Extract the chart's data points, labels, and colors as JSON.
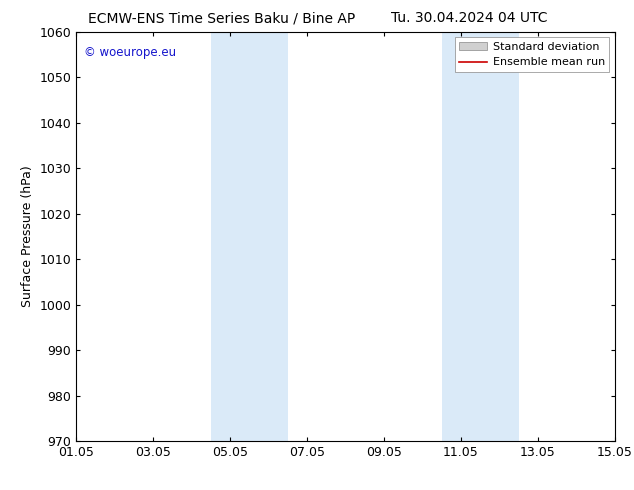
{
  "title_left": "ECMW-ENS Time Series Baku / Bine AP",
  "title_right": "Tu. 30.04.2024 04 UTC",
  "ylabel": "Surface Pressure (hPa)",
  "ylim": [
    970,
    1060
  ],
  "yticks": [
    970,
    980,
    990,
    1000,
    1010,
    1020,
    1030,
    1040,
    1050,
    1060
  ],
  "xlim": [
    0,
    14
  ],
  "xtick_labels": [
    "01.05",
    "03.05",
    "05.05",
    "07.05",
    "09.05",
    "11.05",
    "13.05",
    "15.05"
  ],
  "xtick_positions": [
    0,
    2,
    4,
    6,
    8,
    10,
    12,
    14
  ],
  "shaded_bands": [
    {
      "x_start": 3.5,
      "x_end": 4.5,
      "color": "#daeaf8"
    },
    {
      "x_start": 4.5,
      "x_end": 5.5,
      "color": "#daeaf8"
    },
    {
      "x_start": 9.5,
      "x_end": 10.5,
      "color": "#daeaf8"
    },
    {
      "x_start": 10.5,
      "x_end": 11.5,
      "color": "#daeaf8"
    }
  ],
  "legend_std_color": "#d0d0d0",
  "legend_std_edge": "#888888",
  "legend_mean_color": "#cc0000",
  "watermark_text": "© woeurope.eu",
  "watermark_color": "#1515cc",
  "bg_color": "#ffffff",
  "title_fontsize": 10,
  "axis_label_fontsize": 9,
  "tick_fontsize": 9,
  "legend_fontsize": 8
}
